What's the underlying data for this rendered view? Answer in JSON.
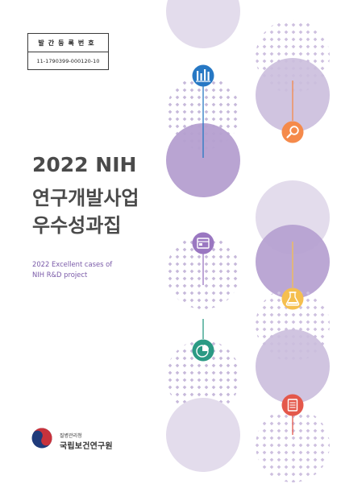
{
  "registration": {
    "label": "발간등록번호",
    "number": "11-1790399-000120-10"
  },
  "title": {
    "line1": "2022 NIH",
    "line2": "연구개발사업",
    "line3": "우수성과집"
  },
  "subtitle": {
    "line1": "2022 Excellent cases of",
    "line2": "NIH R&D project"
  },
  "publisher": {
    "agency": "질병관리청",
    "institute": "국립보건연구원"
  },
  "icons": [
    "bar-chart-icon",
    "magnifier-icon",
    "document-icon",
    "flask-icon",
    "pie-chart-icon",
    "report-icon"
  ],
  "colors": {
    "purple_light": "#e3dcec",
    "purple_mid": "#cbbedd",
    "purple_dark": "#b59fd0",
    "dot": "#c6b8da",
    "blue": "#2778c4",
    "orange": "#f58a4b",
    "violet": "#9a77c1",
    "yellow": "#f5bf4f",
    "teal": "#2b9a84",
    "red": "#e4584b",
    "title": "#4a4a4a"
  }
}
